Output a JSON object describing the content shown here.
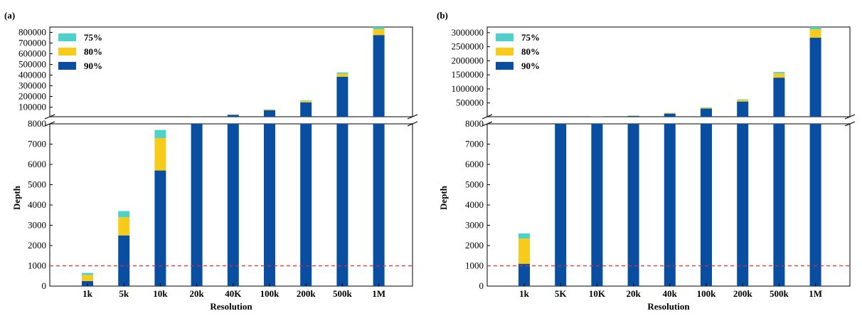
{
  "colors": {
    "c90": "#0a4ea2",
    "c80": "#f7cb1a",
    "c75": "#4fd1cb",
    "threshold": "#d9302c"
  },
  "chart_data": [
    {
      "panel_label": "(a)",
      "type": "bar",
      "stacked": true,
      "broken_y_axis": true,
      "categories": [
        "1k",
        "5k",
        "10k",
        "20k",
        "40K",
        "100k",
        "200k",
        "500k",
        "1M"
      ],
      "series": [
        {
          "name": "90%",
          "values": [
            250,
            2500,
            5700,
            9000,
            28000,
            70000,
            145000,
            385000,
            775000
          ]
        },
        {
          "name": "80%",
          "values": [
            300,
            900,
            1600,
            1000,
            2000,
            6000,
            12000,
            28000,
            55000
          ]
        },
        {
          "name": "75%",
          "values": [
            100,
            300,
            400,
            500,
            1000,
            3000,
            5000,
            12000,
            25000
          ]
        }
      ],
      "xlabel": "Resolution",
      "ylabel": "Depth",
      "lower_ylim": [
        0,
        8000
      ],
      "lower_yticks": [
        "0",
        "1000",
        "2000",
        "3000",
        "4000",
        "5000",
        "6000",
        "7000",
        "8000"
      ],
      "upper_ylim": [
        10000,
        850000
      ],
      "upper_yticks": [
        "100000",
        "200000",
        "300000",
        "400000",
        "500000",
        "600000",
        "700000",
        "800000"
      ],
      "threshold": 1000,
      "legend_position": "top-left"
    },
    {
      "panel_label": "(b)",
      "type": "bar",
      "stacked": true,
      "broken_y_axis": true,
      "categories": [
        "1k",
        "5K",
        "10K",
        "20k",
        "40k",
        "100k",
        "200k",
        "500k",
        "1M"
      ],
      "series": [
        {
          "name": "90%",
          "values": [
            1100,
            9000,
            20000,
            40000,
            120000,
            300000,
            550000,
            1400000,
            2820000
          ]
        },
        {
          "name": "80%",
          "values": [
            1250,
            1000,
            5000,
            8000,
            20000,
            30000,
            60000,
            150000,
            300000
          ]
        },
        {
          "name": "75%",
          "values": [
            250,
            500,
            2000,
            4000,
            8000,
            12000,
            20000,
            50000,
            100000
          ]
        }
      ],
      "xlabel": "Resolution",
      "ylabel": "Depth",
      "lower_ylim": [
        0,
        8000
      ],
      "lower_yticks": [
        "0",
        "1000",
        "2000",
        "3000",
        "4000",
        "5000",
        "6000",
        "7000",
        "8000"
      ],
      "upper_ylim": [
        10000,
        3200000
      ],
      "upper_yticks": [
        "500000",
        "1000000",
        "1500000",
        "2000000",
        "2500000",
        "3000000"
      ],
      "threshold": 1000,
      "legend_position": "top-left"
    }
  ]
}
